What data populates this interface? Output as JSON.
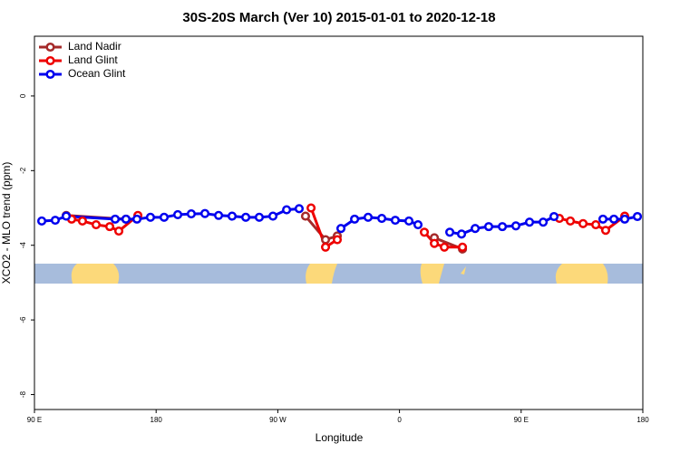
{
  "chart_data": {
    "type": "line",
    "title": "30S-20S March (Ver 10)   2015-01-01 to 2020-12-18",
    "x_label": "Longitude",
    "y_label": "XCO2 - MLO trend (ppm)",
    "xlim": [
      90,
      540
    ],
    "ylim": [
      -8.4,
      1.6
    ],
    "xticks": [
      {
        "value": 90,
        "label": "90 E"
      },
      {
        "value": 180,
        "label": "180"
      },
      {
        "value": 270,
        "label": "90 W"
      },
      {
        "value": 360,
        "label": "0"
      },
      {
        "value": 450,
        "label": "90 E"
      },
      {
        "value": 540,
        "label": "180"
      }
    ],
    "yticks": [
      0,
      -2,
      -4,
      -6,
      -8
    ],
    "legend_position": "top-left",
    "series": [
      {
        "name": "Land Nadir",
        "color": "#a52a2a",
        "x": [
          113.5,
          157.7,
          null,
          290.5,
          305.3,
          314,
          null,
          385.8,
          406.6
        ],
        "values": [
          -3.2,
          -3.3,
          null,
          -3.22,
          -3.85,
          -3.75,
          null,
          -3.8,
          -4.1
        ]
      },
      {
        "name": "Land Glint",
        "color": "#ee0000",
        "x": [
          117.5,
          125.5,
          135.6,
          145.7,
          152.4,
          166.5,
          null,
          294.6,
          305.3,
          314,
          null,
          378.4,
          385.8,
          393.2,
          406.6,
          null,
          478.3,
          486.4,
          495.8,
          505.2,
          512.5,
          526.6
        ],
        "values": [
          -3.3,
          -3.35,
          -3.45,
          -3.5,
          -3.62,
          -3.2,
          null,
          -3.0,
          -4.05,
          -3.85,
          null,
          -3.65,
          -3.95,
          -4.05,
          -4.05,
          null,
          -3.28,
          -3.35,
          -3.42,
          -3.45,
          -3.6,
          -3.22
        ]
      },
      {
        "name": "Ocean Glint",
        "color": "#0000ee",
        "x": [
          95.4,
          105.4,
          113.5,
          149.7,
          157.7,
          165.8,
          175.8,
          185.9,
          196,
          206,
          216.1,
          226.2,
          236.2,
          246.3,
          256.3,
          266.4,
          276.5,
          285.8,
          null,
          316.7,
          326.8,
          336.8,
          346.9,
          356.9,
          367,
          373.7,
          null,
          397.2,
          405.9,
          416,
          426,
          436.1,
          446.1,
          456.2,
          466.3,
          474.3,
          null,
          510.5,
          518.6,
          526.6,
          536
        ],
        "values": [
          -3.35,
          -3.33,
          -3.22,
          -3.3,
          -3.3,
          -3.3,
          -3.25,
          -3.25,
          -3.18,
          -3.16,
          -3.15,
          -3.2,
          -3.22,
          -3.25,
          -3.25,
          -3.22,
          -3.05,
          -3.02,
          null,
          -3.55,
          -3.3,
          -3.25,
          -3.28,
          -3.33,
          -3.35,
          -3.45,
          null,
          -3.65,
          -3.7,
          -3.55,
          -3.5,
          -3.5,
          -3.48,
          -3.38,
          -3.38,
          -3.23,
          null,
          -3.3,
          -3.3,
          -3.3,
          -3.23
        ]
      }
    ]
  }
}
